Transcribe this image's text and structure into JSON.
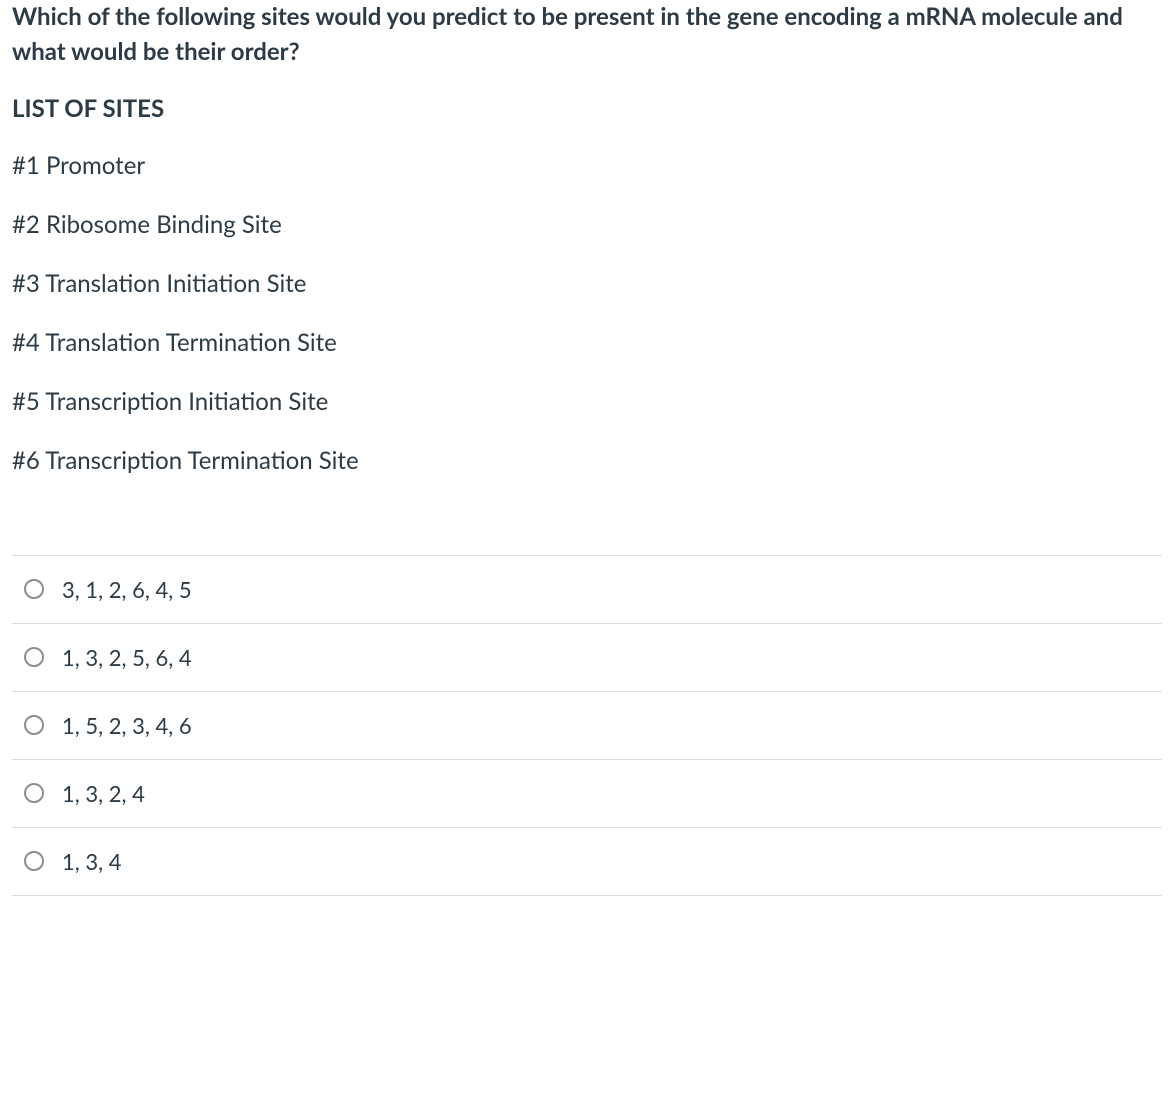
{
  "question": {
    "stem": "Which of the following sites would you predict to be present in the gene encoding a mRNA molecule and what would be their order?",
    "listHeading": "LIST OF SITES",
    "sites": [
      "#1 Promoter",
      "#2 Ribosome Binding Site",
      "#3 Translation Initiation Site",
      "#4 Translation Termination Site",
      "#5 Transcription Initiation Site",
      "#6 Transcription Termination Site"
    ]
  },
  "answers": {
    "options": [
      "3, 1, 2, 6, 4, 5",
      "1, 3, 2, 5, 6, 4",
      "1, 5, 2, 3, 4, 6",
      "1, 3, 2, 4",
      "1, 3, 4"
    ]
  },
  "colors": {
    "text": "#2d3b45",
    "divider": "#d9dcde",
    "radioBorder": "#888f94",
    "background": "#ffffff"
  },
  "typography": {
    "stemFontSize": 24,
    "stemFontWeight": 700,
    "bodyFontSize": 24,
    "answerFontSize": 22,
    "fontFamily": "Lato, Helvetica Neue, Helvetica, Arial, sans-serif"
  }
}
